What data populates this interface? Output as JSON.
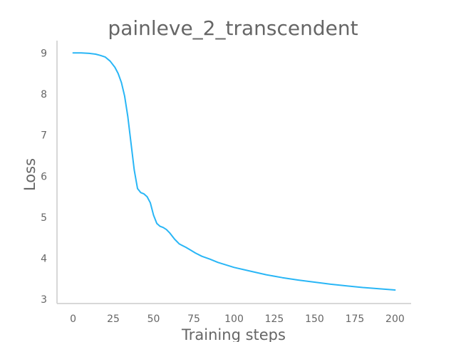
{
  "chart_data": {
    "type": "line",
    "title": "painleve_2_transcendent",
    "xlabel": "Training steps",
    "ylabel": "Loss",
    "xlim": [
      -10,
      210
    ],
    "ylim": [
      2.9,
      9.3
    ],
    "xticks": [
      0,
      25,
      50,
      75,
      100,
      125,
      150,
      175,
      200
    ],
    "yticks": [
      3,
      4,
      5,
      6,
      7,
      8,
      9
    ],
    "grid": false,
    "series": [
      {
        "color": "#29b6f6",
        "x": [
          0,
          2,
          5,
          10,
          14,
          17,
          20,
          23,
          26,
          28,
          30,
          32,
          34,
          36,
          38,
          40,
          42,
          44,
          46,
          48,
          50,
          52,
          54,
          56,
          58,
          60,
          63,
          66,
          70,
          73,
          76,
          80,
          85,
          90,
          95,
          100,
          110,
          120,
          130,
          140,
          150,
          160,
          170,
          180,
          190,
          200
        ],
        "y": [
          9.0,
          9.0,
          9.0,
          8.99,
          8.97,
          8.94,
          8.9,
          8.8,
          8.65,
          8.5,
          8.28,
          7.95,
          7.45,
          6.8,
          6.15,
          5.7,
          5.6,
          5.57,
          5.5,
          5.35,
          5.05,
          4.85,
          4.78,
          4.75,
          4.7,
          4.62,
          4.47,
          4.35,
          4.27,
          4.2,
          4.13,
          4.05,
          3.98,
          3.9,
          3.84,
          3.78,
          3.69,
          3.6,
          3.53,
          3.47,
          3.42,
          3.37,
          3.33,
          3.29,
          3.26,
          3.23
        ]
      }
    ]
  }
}
